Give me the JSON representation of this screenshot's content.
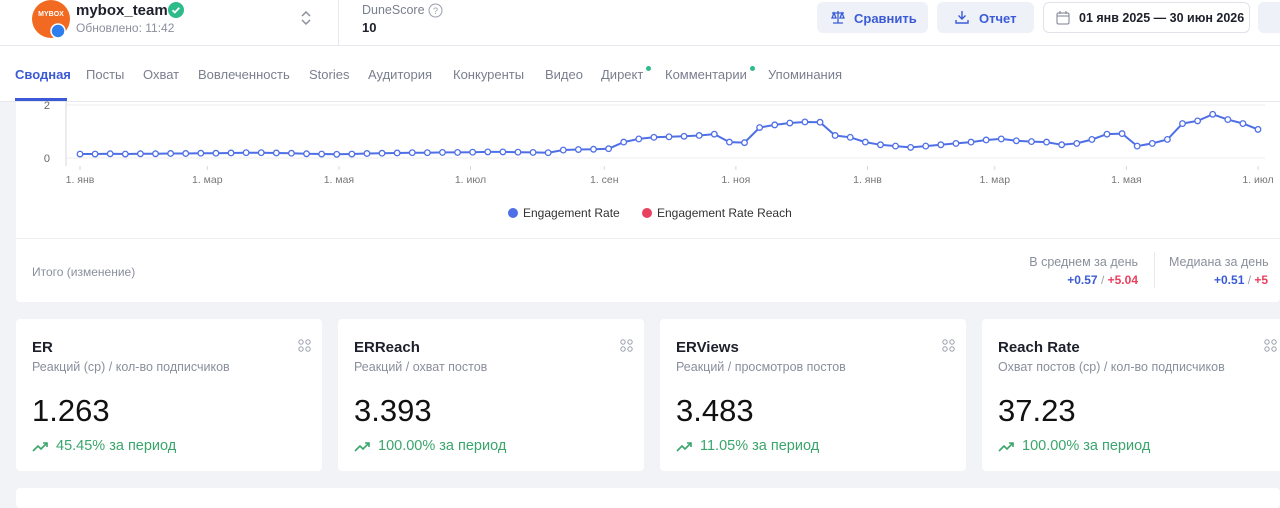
{
  "header": {
    "avatar_text": "MYBOX",
    "account_name": "mybox_team",
    "updated": "Обновлено: 11:42",
    "score_label": "DuneScore",
    "score_value": "10",
    "compare_button": "Сравнить",
    "report_button": "Отчет",
    "date_range": "01 янв 2025 — 30 июн 2026"
  },
  "tabs": [
    "Сводная",
    "Посты",
    "Охват",
    "Вовлеченность",
    "Stories",
    "Аудитория",
    "Конкуренты",
    "Видео",
    "Директ",
    "Комментарии",
    "Упоминания"
  ],
  "chart_data": {
    "type": "line",
    "x": [
      0,
      7,
      14,
      21,
      28,
      35,
      42,
      49,
      56,
      63,
      70,
      77,
      84,
      91,
      98,
      105,
      112,
      119,
      126,
      133,
      140,
      147,
      154,
      161,
      168,
      175,
      182,
      189,
      196,
      203,
      210,
      217,
      224,
      231,
      238,
      245,
      252,
      259,
      266,
      273,
      280,
      287,
      294,
      301,
      308,
      315,
      322,
      329,
      336,
      343,
      350,
      357,
      364,
      371,
      378,
      385,
      392,
      399,
      406,
      413,
      420,
      427,
      434,
      441,
      448,
      455,
      462,
      469,
      476,
      483,
      490,
      497,
      504,
      511,
      518,
      525,
      532,
      539,
      546
    ],
    "xlim": [
      0,
      546
    ],
    "xticks": [
      {
        "value": 0,
        "label": "1. янв"
      },
      {
        "value": 59,
        "label": "1. мар"
      },
      {
        "value": 120,
        "label": "1. мая"
      },
      {
        "value": 181,
        "label": "1. июл"
      },
      {
        "value": 243,
        "label": "1. сен"
      },
      {
        "value": 304,
        "label": "1. ноя"
      },
      {
        "value": 365,
        "label": "1. янв"
      },
      {
        "value": 424,
        "label": "1. мар"
      },
      {
        "value": 485,
        "label": "1. мая"
      },
      {
        "value": 546,
        "label": "1. июл"
      }
    ],
    "ylim": [
      0,
      2
    ],
    "yticks": [
      0,
      2
    ],
    "grid": true,
    "legend": "bottom",
    "series": [
      {
        "name": "Engagement Rate",
        "color": "#4f6fe6",
        "values": [
          0.15,
          0.15,
          0.16,
          0.15,
          0.16,
          0.16,
          0.17,
          0.17,
          0.18,
          0.18,
          0.19,
          0.2,
          0.2,
          0.19,
          0.18,
          0.16,
          0.15,
          0.14,
          0.15,
          0.17,
          0.18,
          0.19,
          0.2,
          0.2,
          0.21,
          0.21,
          0.22,
          0.23,
          0.23,
          0.22,
          0.21,
          0.2,
          0.3,
          0.32,
          0.33,
          0.35,
          0.6,
          0.72,
          0.78,
          0.8,
          0.82,
          0.85,
          0.9,
          0.6,
          0.58,
          1.15,
          1.25,
          1.32,
          1.36,
          1.35,
          0.85,
          0.78,
          0.6,
          0.5,
          0.45,
          0.4,
          0.45,
          0.5,
          0.55,
          0.6,
          0.68,
          0.72,
          0.65,
          0.62,
          0.6,
          0.5,
          0.55,
          0.7,
          0.9,
          0.92,
          0.45,
          0.55,
          0.7,
          1.3,
          1.4,
          1.65,
          1.45,
          1.3,
          1.08
        ]
      },
      {
        "name": "Engagement Rate Reach",
        "color": "#e8405e",
        "values": [
          null,
          null,
          null,
          null,
          null,
          null,
          null,
          null,
          null,
          null,
          null,
          null,
          null,
          null,
          null,
          null,
          null,
          null,
          null,
          null,
          null,
          null,
          null,
          null,
          null,
          null,
          null,
          null,
          null,
          null,
          null,
          null,
          null,
          null,
          null,
          null,
          null,
          null,
          null,
          null,
          null,
          null,
          null,
          null,
          null,
          null,
          null,
          null,
          null,
          null,
          null,
          null,
          null,
          null,
          null,
          null,
          null,
          null,
          null,
          null,
          null,
          null,
          null,
          null,
          null,
          null,
          null,
          null,
          null,
          null,
          null,
          null,
          null,
          null,
          null,
          null,
          null,
          null,
          null
        ]
      }
    ]
  },
  "summary": {
    "label": "Итого (изменение)",
    "average": {
      "title": "В среднем за день",
      "first": "+0.57",
      "separator": "/",
      "second": "+5.04"
    },
    "median": {
      "title": "Медиана за день",
      "first": "+0.51",
      "separator": "/",
      "second": "+5"
    }
  },
  "cards": [
    {
      "title": "ER",
      "subtitle": "Реакций (ср) / кол-во подписчиков",
      "value": "1.263",
      "change": "45.45% за период"
    },
    {
      "title": "ERReach",
      "subtitle": "Реакций / охват постов",
      "value": "3.393",
      "change": "100.00% за период"
    },
    {
      "title": "ERViews",
      "subtitle": "Реакций / просмотров постов",
      "value": "3.483",
      "change": "11.05% за период"
    },
    {
      "title": "Reach Rate",
      "subtitle": "Охват постов (ср) / кол-во подписчиков",
      "value": "37.23",
      "change": "100.00% за период"
    }
  ]
}
